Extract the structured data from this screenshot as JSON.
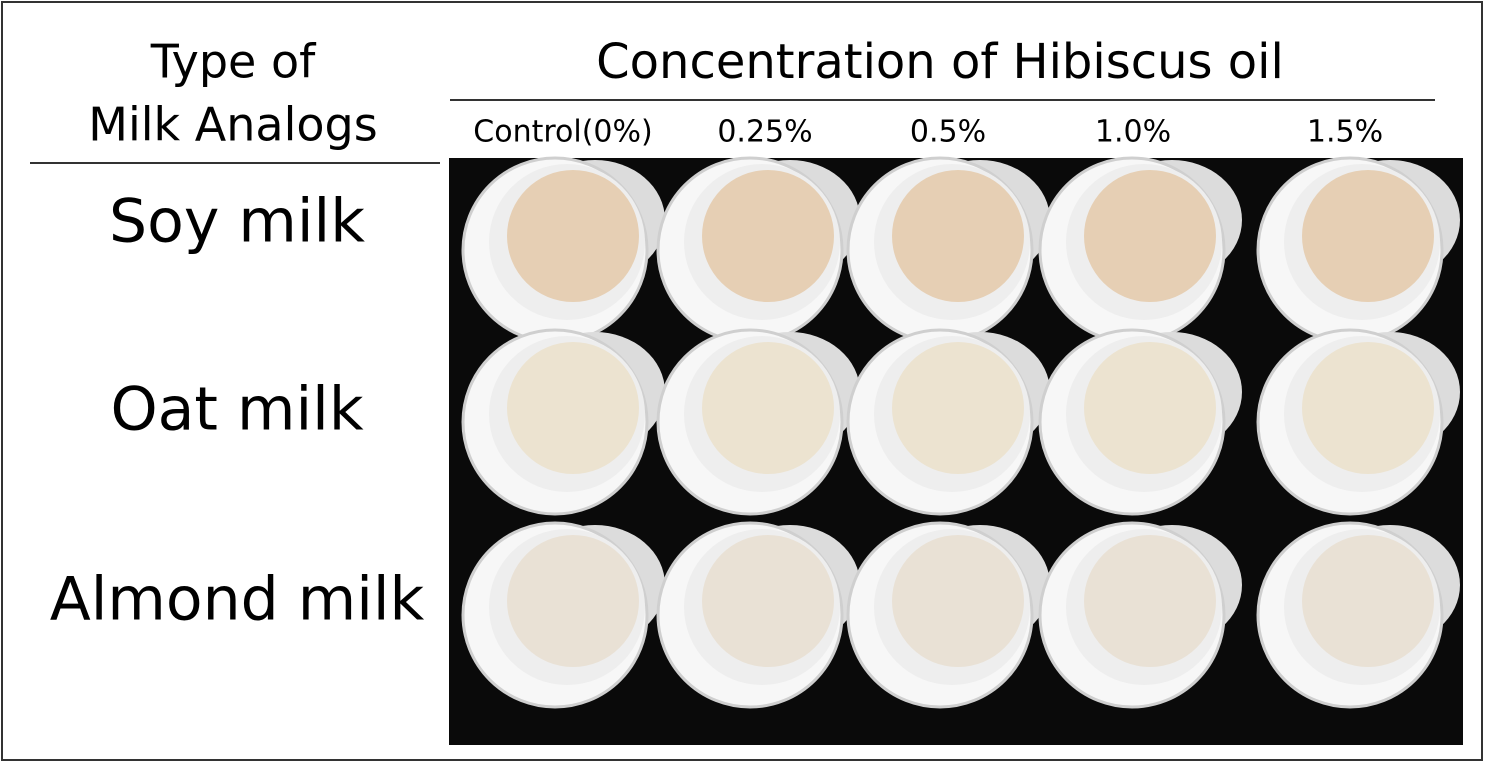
{
  "header": {
    "row_title": [
      "Type of",
      "Milk Analogs"
    ],
    "column_title": "Concentration of Hibiscus oil"
  },
  "columns": [
    "Control(0%)",
    "0.25%",
    "0.5%",
    "1.0%",
    "1.5%"
  ],
  "rows": [
    "Soy milk",
    "Oat milk",
    "Almond milk"
  ]
}
